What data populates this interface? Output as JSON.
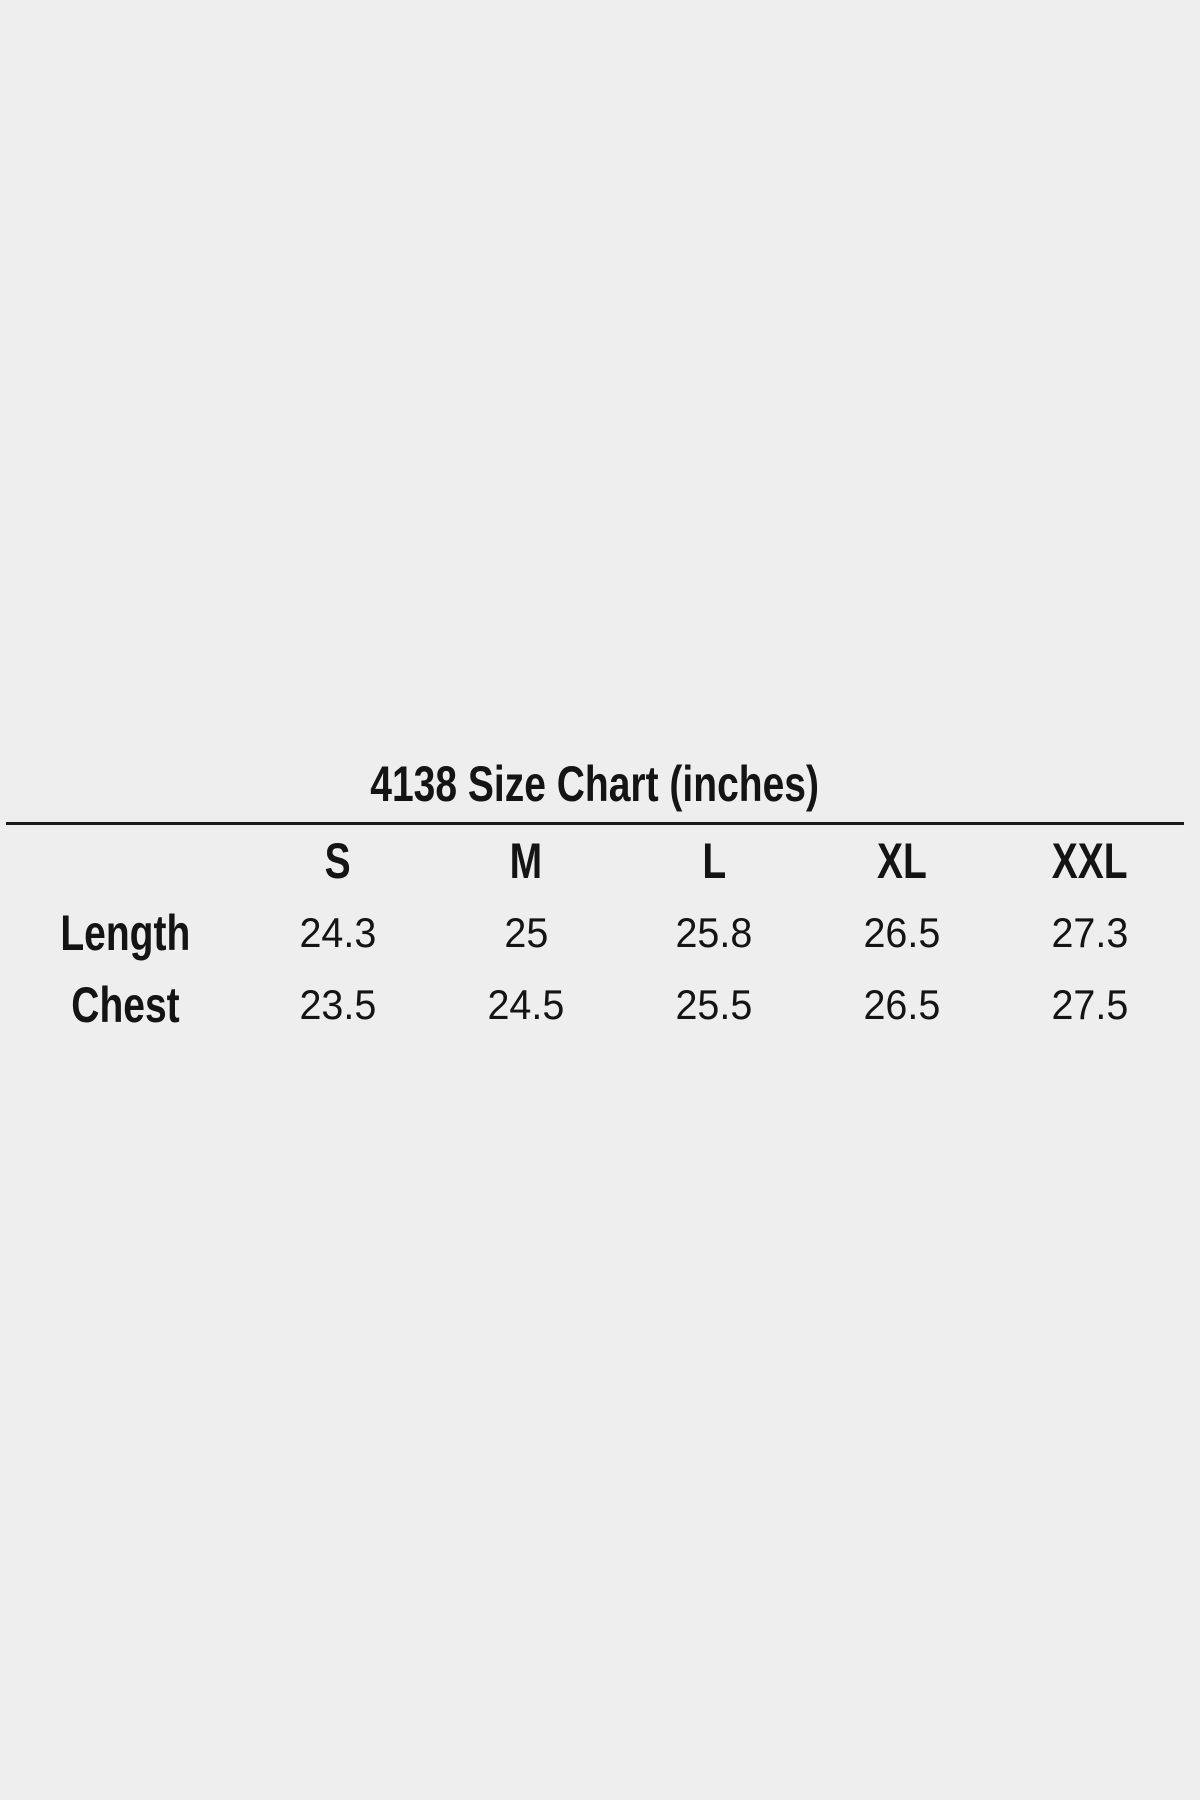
{
  "page": {
    "background_color": "#eeeeee",
    "text_color": "#141414",
    "rule_color": "#1b1b1b"
  },
  "chart_data": {
    "type": "table",
    "title": "4138 Size Chart (inches)",
    "columns": [
      "",
      "S",
      "M",
      "L",
      "XL",
      "XXL"
    ],
    "rows": [
      {
        "label": "Length",
        "values": [
          "24.3",
          "25",
          "25.8",
          "26.5",
          "27.3"
        ]
      },
      {
        "label": "Chest",
        "values": [
          "23.5",
          "24.5",
          "25.5",
          "26.5",
          "27.5"
        ]
      }
    ],
    "layout_hints": {
      "title_rule": "single heavy horizontal line under title",
      "grid": "none",
      "alignment": "all cells centered, first column bold row labels"
    }
  }
}
